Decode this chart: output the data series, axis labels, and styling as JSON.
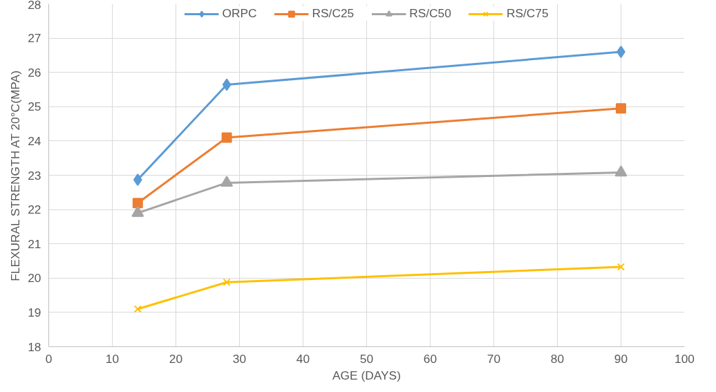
{
  "chart_data": {
    "type": "line",
    "xlabel": "AGE (DAYS)",
    "ylabel": "FLEXURAL STRENGTH AT 20°C(MPA)",
    "x": [
      14,
      28,
      90
    ],
    "series": [
      {
        "name": "ORPC",
        "color": "#5b9bd5",
        "marker": "diamond",
        "values": [
          22.87,
          25.64,
          26.6
        ]
      },
      {
        "name": "RS/C25",
        "color": "#ed7d31",
        "marker": "square",
        "values": [
          22.19,
          24.1,
          24.95
        ]
      },
      {
        "name": "RS/C50",
        "color": "#a5a5a5",
        "marker": "triangle",
        "values": [
          21.9,
          22.78,
          23.08
        ]
      },
      {
        "name": "RS/C75",
        "color": "#ffc000",
        "marker": "cross",
        "values": [
          19.1,
          19.88,
          20.33
        ]
      }
    ],
    "xlim": [
      0,
      100
    ],
    "xticks": [
      0,
      10,
      20,
      30,
      40,
      50,
      60,
      70,
      80,
      90,
      100
    ],
    "ylim": [
      18,
      28
    ],
    "yticks": [
      18,
      19,
      20,
      21,
      22,
      23,
      24,
      25,
      26,
      27,
      28
    ],
    "grid": true,
    "legend": "top",
    "line_style": "solid"
  }
}
